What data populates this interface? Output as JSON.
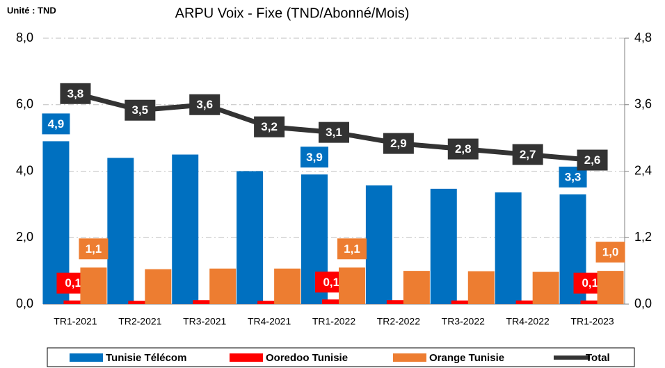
{
  "chart_data": {
    "type": "bar",
    "unit": "Unité : TND",
    "title": "ARPU Voix - Fixe (TND/Abonné/Mois)",
    "categories": [
      "TR1-2021",
      "TR2-2021",
      "TR3-2021",
      "TR4-2021",
      "TR1-2022",
      "TR2-2022",
      "TR3-2022",
      "TR4-2022",
      "TR1-2023"
    ],
    "series": [
      {
        "name": "Tunisie Télécom",
        "color": "#0070c0",
        "values": [
          4.9,
          4.4,
          4.5,
          4.0,
          3.9,
          3.57,
          3.47,
          3.36,
          3.3
        ],
        "value_labels": [
          "4,9",
          null,
          null,
          null,
          "3,9",
          null,
          null,
          null,
          "3,3"
        ]
      },
      {
        "name": "Ooredoo Tunisie",
        "color": "#ff0000",
        "values": [
          0.11,
          0.1,
          0.12,
          0.1,
          0.14,
          0.12,
          0.11,
          0.11,
          0.11
        ],
        "value_labels": [
          "0,11",
          null,
          null,
          null,
          "0,14",
          null,
          null,
          null,
          "0,11"
        ]
      },
      {
        "name": "Orange Tunisie",
        "color": "#ed7d31",
        "values": [
          1.1,
          1.05,
          1.07,
          1.07,
          1.1,
          1.0,
          0.99,
          0.97,
          1.0
        ],
        "value_labels": [
          "1,1",
          null,
          null,
          null,
          "1,1",
          null,
          null,
          null,
          "1,0"
        ]
      },
      {
        "name": "Total",
        "color": "#333333",
        "type": "line",
        "axis": "y2",
        "values": [
          3.8,
          3.5,
          3.6,
          3.2,
          3.1,
          2.9,
          2.8,
          2.7,
          2.6
        ],
        "value_labels": [
          "3,8",
          "3,5",
          "3,6",
          "3,2",
          "3,1",
          "2,9",
          "2,8",
          "2,7",
          "2,6"
        ]
      }
    ],
    "ylim": [
      0,
      8
    ],
    "yticks": [
      {
        "value": 0,
        "label": "0,0"
      },
      {
        "value": 2,
        "label": "2,0"
      },
      {
        "value": 4,
        "label": "4,0"
      },
      {
        "value": 6,
        "label": "6,0"
      },
      {
        "value": 8,
        "label": "8,0"
      }
    ],
    "y2lim": [
      0,
      4.8
    ],
    "y2ticks": [
      {
        "value": 0,
        "label": "0,0"
      },
      {
        "value": 1.2,
        "label": "1,2"
      },
      {
        "value": 2.4,
        "label": "2,4"
      },
      {
        "value": 3.6,
        "label": "3,6"
      },
      {
        "value": 4.8,
        "label": "4,8"
      }
    ],
    "grid": true,
    "legend": "bottom"
  }
}
